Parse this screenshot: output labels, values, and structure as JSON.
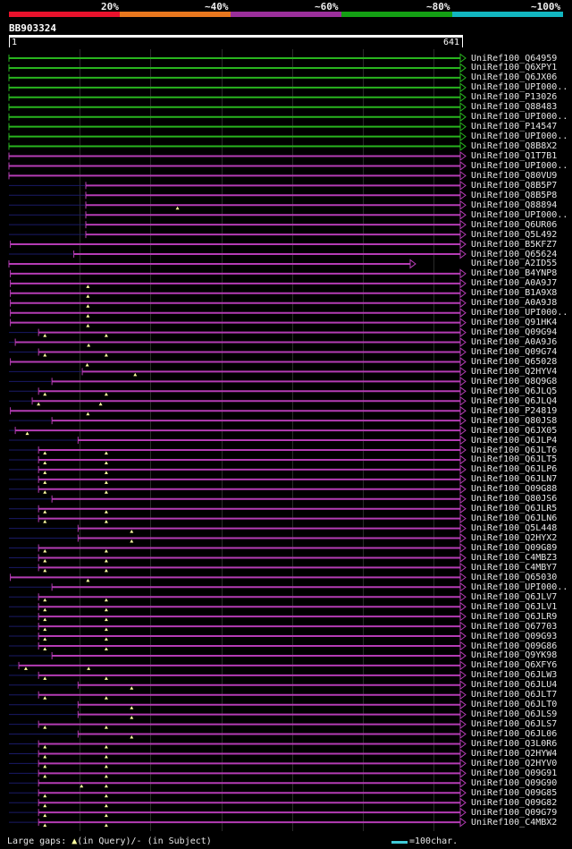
{
  "scale": {
    "labels": [
      "20%",
      "~40%",
      "~60%",
      "~80%",
      "~100%"
    ],
    "colors": [
      "#e8122c",
      "#e8771e",
      "#9b2f9b",
      "#14a014",
      "#12b6c0"
    ]
  },
  "query": {
    "id": "BB903324",
    "start": "1",
    "end": "641",
    "length": 641
  },
  "colors": {
    "green": "#28b41e",
    "purple": "#b43cb4",
    "dark": "#1a1a66",
    "gap": "#ffffa0"
  },
  "hits": [
    {
      "id": "UniRef100_Q64959",
      "c": "green",
      "s": 1,
      "e": 641,
      "arrow": 1,
      "gaps": []
    },
    {
      "id": "UniRef100_Q6XPY1",
      "c": "green",
      "s": 1,
      "e": 641,
      "arrow": 1,
      "gaps": []
    },
    {
      "id": "UniRef100_Q6JX06",
      "c": "green",
      "s": 1,
      "e": 641,
      "arrow": 1,
      "gaps": []
    },
    {
      "id": "UniRef100_UPI000..",
      "c": "green",
      "s": 1,
      "e": 641,
      "arrow": 1,
      "gaps": []
    },
    {
      "id": "UniRef100_P13026",
      "c": "green",
      "s": 1,
      "e": 641,
      "arrow": 1,
      "gaps": []
    },
    {
      "id": "UniRef100_Q88483",
      "c": "green",
      "s": 1,
      "e": 641,
      "arrow": 1,
      "gaps": []
    },
    {
      "id": "UniRef100_UPI000..",
      "c": "green",
      "s": 1,
      "e": 641,
      "arrow": 1,
      "gaps": []
    },
    {
      "id": "UniRef100_P14547",
      "c": "green",
      "s": 1,
      "e": 641,
      "arrow": 1,
      "gaps": []
    },
    {
      "id": "UniRef100_UPI000..",
      "c": "green",
      "s": 1,
      "e": 641,
      "arrow": 1,
      "gaps": []
    },
    {
      "id": "UniRef100_Q8B8X2",
      "c": "green",
      "s": 1,
      "e": 641,
      "arrow": 1,
      "gaps": []
    },
    {
      "id": "UniRef100_Q1T7B1",
      "c": "purple",
      "s": 1,
      "e": 641,
      "arrow": 1,
      "gaps": []
    },
    {
      "id": "UniRef100_UPI000..",
      "c": "purple",
      "s": 1,
      "e": 641,
      "arrow": 1,
      "gaps": []
    },
    {
      "id": "UniRef100_Q80VU9",
      "c": "purple",
      "s": 1,
      "e": 641,
      "arrow": 1,
      "gaps": []
    },
    {
      "id": "UniRef100_Q8B5P7",
      "c": "purple",
      "s": 110,
      "e": 641,
      "arrow": 1,
      "gaps": []
    },
    {
      "id": "UniRef100_Q8B5P8",
      "c": "purple",
      "s": 110,
      "e": 641,
      "arrow": 1,
      "gaps": []
    },
    {
      "id": "UniRef100_Q88894",
      "c": "purple",
      "s": 110,
      "e": 641,
      "arrow": 1,
      "gaps": [
        240
      ]
    },
    {
      "id": "UniRef100_UPI000..",
      "c": "purple",
      "s": 110,
      "e": 641,
      "arrow": 1,
      "gaps": []
    },
    {
      "id": "UniRef100_Q6UR06",
      "c": "purple",
      "s": 110,
      "e": 641,
      "arrow": 1,
      "gaps": []
    },
    {
      "id": "UniRef100_Q5L492",
      "c": "purple",
      "s": 110,
      "e": 641,
      "arrow": 1,
      "gaps": []
    },
    {
      "id": "UniRef100_B5KFZ7",
      "c": "purple",
      "s": 3,
      "e": 641,
      "arrow": 1,
      "gaps": []
    },
    {
      "id": "UniRef100_Q65624",
      "c": "purple",
      "s": 93,
      "e": 641,
      "arrow": 1,
      "gaps": []
    },
    {
      "id": "UniRef100_A2ID55",
      "c": "purple",
      "s": 1,
      "e": 570,
      "arrow": 1,
      "gaps": []
    },
    {
      "id": "UniRef100_B4YNP8",
      "c": "purple",
      "s": 3,
      "e": 641,
      "arrow": 1,
      "gaps": []
    },
    {
      "id": "UniRef100_A0A9J7",
      "c": "purple",
      "s": 3,
      "e": 641,
      "arrow": 1,
      "gaps": [
        113
      ]
    },
    {
      "id": "UniRef100_B1A9X8",
      "c": "purple",
      "s": 3,
      "e": 641,
      "arrow": 1,
      "gaps": [
        113
      ]
    },
    {
      "id": "UniRef100_A0A9J8",
      "c": "purple",
      "s": 3,
      "e": 641,
      "arrow": 1,
      "gaps": [
        113
      ]
    },
    {
      "id": "UniRef100_UPI000..",
      "c": "purple",
      "s": 3,
      "e": 641,
      "arrow": 1,
      "gaps": [
        113
      ]
    },
    {
      "id": "UniRef100_Q91HK4",
      "c": "purple",
      "s": 3,
      "e": 641,
      "arrow": 1,
      "gaps": [
        113
      ]
    },
    {
      "id": "UniRef100_Q09G94",
      "c": "purple",
      "s": 43,
      "e": 641,
      "arrow": 1,
      "gaps": [
        52,
        139
      ]
    },
    {
      "id": "UniRef100_A0A9J6",
      "c": "purple",
      "s": 10,
      "e": 641,
      "arrow": 1,
      "gaps": [
        114
      ]
    },
    {
      "id": "UniRef100_Q09G74",
      "c": "purple",
      "s": 43,
      "e": 641,
      "arrow": 1,
      "gaps": [
        52,
        139
      ]
    },
    {
      "id": "UniRef100_Q65028",
      "c": "purple",
      "s": 3,
      "e": 641,
      "arrow": 1,
      "gaps": [
        112
      ]
    },
    {
      "id": "UniRef100_Q2HYV4",
      "c": "purple",
      "s": 105,
      "e": 641,
      "arrow": 1,
      "gaps": [
        180
      ]
    },
    {
      "id": "UniRef100_Q8Q9G8",
      "c": "purple",
      "s": 62,
      "e": 641,
      "arrow": 1,
      "gaps": []
    },
    {
      "id": "UniRef100_Q6JLQ5",
      "c": "purple",
      "s": 43,
      "e": 641,
      "arrow": 1,
      "gaps": [
        52,
        139
      ]
    },
    {
      "id": "UniRef100_Q6JLQ4",
      "c": "purple",
      "s": 34,
      "e": 641,
      "arrow": 1,
      "gaps": [
        43,
        131
      ]
    },
    {
      "id": "UniRef100_P24819",
      "c": "purple",
      "s": 3,
      "e": 641,
      "arrow": 1,
      "gaps": [
        113
      ]
    },
    {
      "id": "UniRef100_Q80JS8",
      "c": "purple",
      "s": 62,
      "e": 641,
      "arrow": 1,
      "gaps": []
    },
    {
      "id": "UniRef100_Q6JX05",
      "c": "purple",
      "s": 10,
      "e": 641,
      "arrow": 1,
      "gaps": [
        27
      ]
    },
    {
      "id": "UniRef100_Q6JLP4",
      "c": "purple",
      "s": 99,
      "e": 641,
      "arrow": 1,
      "gaps": []
    },
    {
      "id": "UniRef100_Q6JLT6",
      "c": "purple",
      "s": 43,
      "e": 641,
      "arrow": 1,
      "gaps": [
        52,
        139
      ]
    },
    {
      "id": "UniRef100_Q6JLT5",
      "c": "purple",
      "s": 43,
      "e": 641,
      "arrow": 1,
      "gaps": [
        52,
        139
      ]
    },
    {
      "id": "UniRef100_Q6JLP6",
      "c": "purple",
      "s": 43,
      "e": 641,
      "arrow": 1,
      "gaps": [
        52,
        139
      ]
    },
    {
      "id": "UniRef100_Q6JLN7",
      "c": "purple",
      "s": 43,
      "e": 641,
      "arrow": 1,
      "gaps": [
        52,
        139
      ]
    },
    {
      "id": "UniRef100_Q09G88",
      "c": "purple",
      "s": 43,
      "e": 641,
      "arrow": 1,
      "gaps": [
        52,
        139
      ]
    },
    {
      "id": "UniRef100_Q80JS6",
      "c": "purple",
      "s": 62,
      "e": 641,
      "arrow": 1,
      "gaps": []
    },
    {
      "id": "UniRef100_Q6JLR5",
      "c": "purple",
      "s": 43,
      "e": 641,
      "arrow": 1,
      "gaps": [
        52,
        139
      ]
    },
    {
      "id": "UniRef100_Q6JLN6",
      "c": "purple",
      "s": 43,
      "e": 641,
      "arrow": 1,
      "gaps": [
        52,
        139
      ]
    },
    {
      "id": "UniRef100_Q5L448",
      "c": "purple",
      "s": 99,
      "e": 641,
      "arrow": 1,
      "gaps": [
        175
      ]
    },
    {
      "id": "UniRef100_Q2HYX2",
      "c": "purple",
      "s": 99,
      "e": 641,
      "arrow": 1,
      "gaps": [
        175
      ]
    },
    {
      "id": "UniRef100_Q09G89",
      "c": "purple",
      "s": 43,
      "e": 641,
      "arrow": 1,
      "gaps": [
        52,
        139
      ]
    },
    {
      "id": "UniRef100_C4MBZ3",
      "c": "purple",
      "s": 43,
      "e": 641,
      "arrow": 1,
      "gaps": [
        52,
        139
      ]
    },
    {
      "id": "UniRef100_C4MBY7",
      "c": "purple",
      "s": 43,
      "e": 641,
      "arrow": 1,
      "gaps": [
        52,
        139
      ]
    },
    {
      "id": "UniRef100_Q65030",
      "c": "purple",
      "s": 3,
      "e": 641,
      "arrow": 1,
      "gaps": [
        113
      ]
    },
    {
      "id": "UniRef100_UPI000..",
      "c": "purple",
      "s": 62,
      "e": 641,
      "arrow": 1,
      "gaps": []
    },
    {
      "id": "UniRef100_Q6JLV7",
      "c": "purple",
      "s": 43,
      "e": 641,
      "arrow": 1,
      "gaps": [
        52,
        139
      ]
    },
    {
      "id": "UniRef100_Q6JLV1",
      "c": "purple",
      "s": 43,
      "e": 641,
      "arrow": 1,
      "gaps": [
        52,
        139
      ]
    },
    {
      "id": "UniRef100_Q6JLR9",
      "c": "purple",
      "s": 43,
      "e": 641,
      "arrow": 1,
      "gaps": [
        52,
        139
      ]
    },
    {
      "id": "UniRef100_Q67703",
      "c": "purple",
      "s": 43,
      "e": 641,
      "arrow": 1,
      "gaps": [
        52,
        139
      ]
    },
    {
      "id": "UniRef100_Q09G93",
      "c": "purple",
      "s": 43,
      "e": 641,
      "arrow": 1,
      "gaps": [
        52,
        139
      ]
    },
    {
      "id": "UniRef100_Q09G86",
      "c": "purple",
      "s": 43,
      "e": 641,
      "arrow": 1,
      "gaps": [
        52,
        139
      ]
    },
    {
      "id": "UniRef100_Q9YK98",
      "c": "purple",
      "s": 62,
      "e": 641,
      "arrow": 1,
      "gaps": []
    },
    {
      "id": "UniRef100_Q6XFY6",
      "c": "purple",
      "s": 15,
      "e": 641,
      "arrow": 1,
      "gaps": [
        25,
        114
      ]
    },
    {
      "id": "UniRef100_Q6JLW3",
      "c": "purple",
      "s": 43,
      "e": 641,
      "arrow": 1,
      "gaps": [
        52,
        139
      ]
    },
    {
      "id": "UniRef100_Q6JLU4",
      "c": "purple",
      "s": 99,
      "e": 641,
      "arrow": 1,
      "gaps": [
        175
      ]
    },
    {
      "id": "UniRef100_Q6JLT7",
      "c": "purple",
      "s": 43,
      "e": 641,
      "arrow": 1,
      "gaps": [
        52,
        139
      ]
    },
    {
      "id": "UniRef100_Q6JLT0",
      "c": "purple",
      "s": 99,
      "e": 641,
      "arrow": 1,
      "gaps": [
        175
      ]
    },
    {
      "id": "UniRef100_Q6JLS9",
      "c": "purple",
      "s": 99,
      "e": 641,
      "arrow": 1,
      "gaps": [
        175
      ]
    },
    {
      "id": "UniRef100_Q6JLS7",
      "c": "purple",
      "s": 43,
      "e": 641,
      "arrow": 1,
      "gaps": [
        52,
        139
      ]
    },
    {
      "id": "UniRef100_Q6JL06",
      "c": "purple",
      "s": 99,
      "e": 641,
      "arrow": 1,
      "gaps": [
        175
      ]
    },
    {
      "id": "UniRef100_Q3L0R6",
      "c": "purple",
      "s": 43,
      "e": 641,
      "arrow": 1,
      "gaps": [
        52,
        139
      ]
    },
    {
      "id": "UniRef100_Q2HYW4",
      "c": "purple",
      "s": 43,
      "e": 641,
      "arrow": 1,
      "gaps": [
        52,
        139
      ]
    },
    {
      "id": "UniRef100_Q2HYV0",
      "c": "purple",
      "s": 43,
      "e": 641,
      "arrow": 1,
      "gaps": [
        52,
        139
      ]
    },
    {
      "id": "UniRef100_Q09G91",
      "c": "purple",
      "s": 43,
      "e": 641,
      "arrow": 1,
      "gaps": [
        52,
        139
      ]
    },
    {
      "id": "UniRef100_Q09G90",
      "c": "purple",
      "s": 43,
      "e": 641,
      "arrow": 1,
      "gaps": [
        104,
        139
      ]
    },
    {
      "id": "UniRef100_Q09G85",
      "c": "purple",
      "s": 43,
      "e": 641,
      "arrow": 1,
      "gaps": [
        52,
        139
      ]
    },
    {
      "id": "UniRef100_Q09G82",
      "c": "purple",
      "s": 43,
      "e": 641,
      "arrow": 1,
      "gaps": [
        52,
        139
      ]
    },
    {
      "id": "UniRef100_Q09G79",
      "c": "purple",
      "s": 43,
      "e": 641,
      "arrow": 1,
      "gaps": [
        52,
        139
      ]
    },
    {
      "id": "UniRef100_C4MBX2",
      "c": "purple",
      "s": 43,
      "e": 641,
      "arrow": 1,
      "gaps": [
        52,
        139
      ]
    }
  ],
  "footer": {
    "gaps_prefix": "Large gaps:",
    "tri": "▲",
    "gaps_suffix": "(in Query)/- (in Subject)",
    "legend": "=100char."
  }
}
